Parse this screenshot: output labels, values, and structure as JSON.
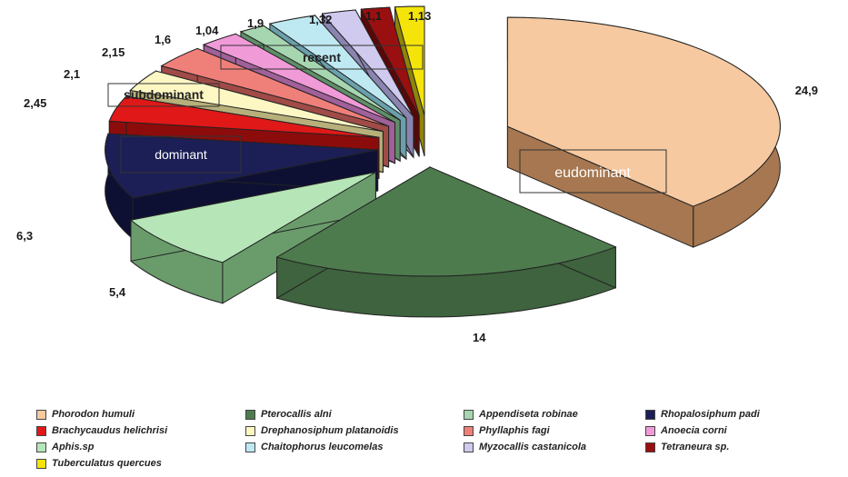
{
  "chart_data": {
    "type": "pie",
    "title": "",
    "slices": [
      {
        "name": "Phorodon humuli",
        "value": 24.9,
        "label": "24,9",
        "color": "#f6c9a0",
        "side": "#a67750"
      },
      {
        "name": "Pterocallis alni",
        "value": 14,
        "label": "14",
        "color": "#4e7b4e",
        "side": "#3e633e"
      },
      {
        "name": "Aphis.sp",
        "value": 5.4,
        "label": "5,4",
        "color": "#b6e6b8",
        "side": "#6a9c6b"
      },
      {
        "name": "Rhopalosiphum padi",
        "value": 6.3,
        "label": "6,3",
        "color": "#1c1f55",
        "side": "#0e1033"
      },
      {
        "name": "Brachycaudus helichrisi",
        "value": 2.45,
        "label": "2,45",
        "color": "#e01818",
        "side": "#8c0c0c"
      },
      {
        "name": "Drephanosiphum platanoidis",
        "value": 2.1,
        "label": "2,1",
        "color": "#fdf7c4",
        "side": "#b7b07a"
      },
      {
        "name": "Phyllaphis fagi",
        "value": 2.15,
        "label": "2,15",
        "color": "#ef7f79",
        "side": "#a04b47"
      },
      {
        "name": "Anoecia corni",
        "value": 1.6,
        "label": "1,6",
        "color": "#f09ad8",
        "side": "#a0609a"
      },
      {
        "name": "Appendiseta robinae",
        "value": 1.04,
        "label": "1,04",
        "color": "#a6d6b0",
        "side": "#5f8f68"
      },
      {
        "name": "Chaitophorus leucomelas",
        "value": 1.9,
        "label": "1,9",
        "color": "#bfe9f2",
        "side": "#6aa0ab"
      },
      {
        "name": "Myzocallis castanicola",
        "value": 1.32,
        "label": "1,32",
        "color": "#cfcaee",
        "side": "#8a84b0"
      },
      {
        "name": "Tetraneura sp.",
        "value": 1.1,
        "label": "1,1",
        "color": "#9a0f10",
        "side": "#5a0708"
      },
      {
        "name": "Tuberculatus quercues",
        "value": 1.13,
        "label": "1,13",
        "color": "#f4e40a",
        "side": "#8e840a"
      }
    ],
    "group_labels": [
      "eudominant",
      "dominant",
      "subdominant",
      "recent"
    ],
    "legend": [
      {
        "name": "Phorodon humuli",
        "color": "#f6c9a0"
      },
      {
        "name": "Pterocallis alni",
        "color": "#4e7b4e"
      },
      {
        "name": "Appendiseta robinae",
        "color": "#a6d6b0"
      },
      {
        "name": "Rhopalosiphum padi",
        "color": "#1c1f55"
      },
      {
        "name": "Brachycaudus helichrisi",
        "color": "#e01818"
      },
      {
        "name": "Drephanosiphum platanoidis",
        "color": "#fdf7c4"
      },
      {
        "name": "Phyllaphis fagi",
        "color": "#ef7f79"
      },
      {
        "name": "Anoecia corni",
        "color": "#f09ad8"
      },
      {
        "name": "Aphis.sp",
        "color": "#b6e6b8"
      },
      {
        "name": "Chaitophorus leucomelas",
        "color": "#bfe9f2"
      },
      {
        "name": "Myzocallis castanicola",
        "color": "#cfcaee"
      },
      {
        "name": "Tetraneura sp.",
        "color": "#9a0f10"
      },
      {
        "name": "Tuberculatus quercues",
        "color": "#f4e40a"
      }
    ]
  }
}
